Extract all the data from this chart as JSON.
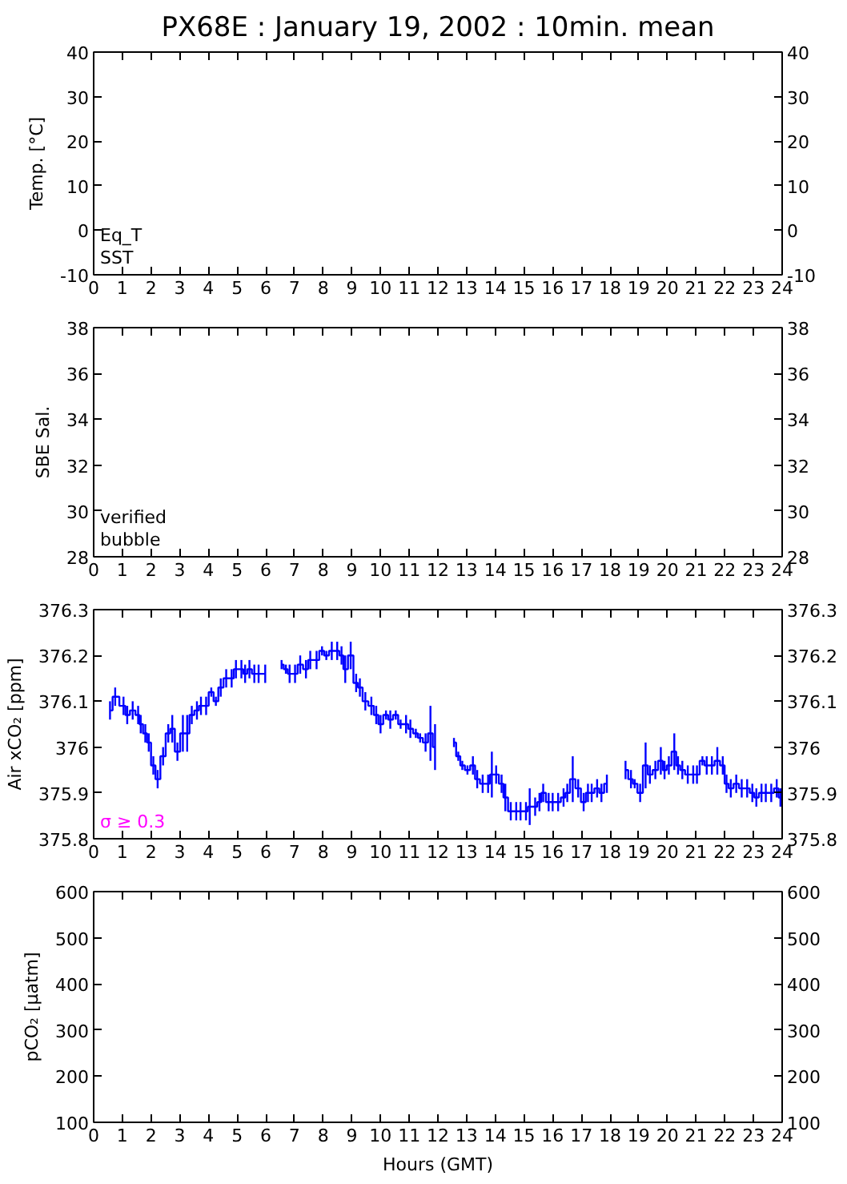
{
  "chart_data": [
    {
      "type": "line",
      "title": "PX68E : January 19, 2002 : 10min. mean",
      "ylabel": "Temp. [°C]",
      "xlim": [
        0,
        24
      ],
      "xticks": [
        0,
        1,
        2,
        3,
        4,
        5,
        6,
        7,
        8,
        9,
        10,
        11,
        12,
        13,
        14,
        15,
        16,
        17,
        18,
        19,
        20,
        21,
        22,
        23,
        24
      ],
      "ylim": [
        -10,
        40
      ],
      "yticks": [
        -10,
        0,
        10,
        20,
        30,
        40
      ],
      "y2lim": [
        -10,
        40
      ],
      "y2ticks": [
        -10,
        0,
        10,
        20,
        30,
        40
      ],
      "annotations": [
        "Eq_T",
        "SST"
      ]
    },
    {
      "type": "line",
      "ylabel": "SBE Sal.",
      "xlim": [
        0,
        24
      ],
      "xticks": [
        0,
        1,
        2,
        3,
        4,
        5,
        6,
        7,
        8,
        9,
        10,
        11,
        12,
        13,
        14,
        15,
        16,
        17,
        18,
        19,
        20,
        21,
        22,
        23,
        24
      ],
      "ylim": [
        28,
        38
      ],
      "yticks": [
        28,
        30,
        32,
        34,
        36,
        38
      ],
      "y2lim": [
        28,
        38
      ],
      "y2ticks": [
        28,
        30,
        32,
        34,
        36,
        38
      ],
      "annotations": [
        "verified",
        "bubble"
      ]
    },
    {
      "type": "step",
      "ylabel": "Air xCO₂ [ppm]",
      "xlim": [
        0,
        24
      ],
      "xticks": [
        0,
        1,
        2,
        3,
        4,
        5,
        6,
        7,
        8,
        9,
        10,
        11,
        12,
        13,
        14,
        15,
        16,
        17,
        18,
        19,
        20,
        21,
        22,
        23,
        24
      ],
      "ylim": [
        375.8,
        376.3
      ],
      "yticks": [
        375.8,
        375.9,
        376,
        376.1,
        376.2,
        376.3
      ],
      "y2lim": [
        375.8,
        376.3
      ],
      "y2ticks": [
        375.8,
        375.9,
        376,
        376.1,
        376.2,
        376.3
      ],
      "series": [
        {
          "color": "#0000ff",
          "x": [
            0.57,
            0.75,
            1.04,
            1.17,
            1.36,
            1.55,
            1.64,
            1.8,
            1.92,
            2.08,
            2.23,
            2.42,
            2.6,
            2.74,
            2.92,
            3.11,
            3.26,
            3.42,
            3.6,
            3.74,
            3.92,
            4.1,
            4.26,
            4.43,
            4.62,
            4.81,
            4.96,
            5.15,
            5.28,
            5.43,
            5.6,
            5.75,
            5.98,
            6.25,
            6.55,
            6.7,
            6.83,
            7.02,
            7.2,
            7.4,
            7.55,
            7.77,
            7.96,
            8.11,
            8.3,
            8.49,
            8.64,
            8.77,
            8.96,
            9.15,
            9.28,
            9.47,
            9.68,
            9.85,
            10.0,
            10.19,
            10.34,
            10.53,
            10.7,
            10.89,
            11.04,
            11.23,
            11.38,
            11.57,
            11.74,
            11.9,
            12.2,
            12.56,
            12.71,
            12.85,
            13.03,
            13.22,
            13.37,
            13.56,
            13.75,
            13.88,
            14.03,
            14.22,
            14.35,
            14.54,
            14.73,
            14.88,
            15.07,
            15.2,
            15.39,
            15.54,
            15.67,
            15.86,
            16.0,
            16.19,
            16.38,
            16.51,
            16.7,
            16.89,
            17.08,
            17.23,
            17.36,
            17.55,
            17.7,
            17.89,
            18.2,
            18.54,
            18.73,
            18.86,
            19.05,
            19.24,
            19.39,
            19.58,
            19.77,
            19.9,
            20.05,
            20.24,
            20.37,
            20.52,
            20.71,
            20.9,
            21.03,
            21.22,
            21.37,
            21.55,
            21.74,
            21.93,
            22.06,
            22.21,
            22.4,
            22.59,
            22.78,
            22.96,
            23.1,
            23.28,
            23.43,
            23.62,
            23.81,
            23.94
          ],
          "values": [
            376.08,
            376.11,
            376.09,
            376.07,
            376.08,
            376.07,
            376.05,
            376.03,
            376.01,
            375.96,
            375.93,
            375.98,
            376.03,
            376.04,
            375.99,
            376.03,
            376.03,
            376.07,
            376.08,
            376.09,
            376.09,
            376.12,
            376.1,
            376.13,
            376.15,
            376.15,
            376.17,
            376.17,
            376.16,
            376.17,
            376.16,
            376.16,
            376.16,
            null,
            376.18,
            376.17,
            376.16,
            376.16,
            376.18,
            376.17,
            376.19,
            376.19,
            376.21,
            376.2,
            376.21,
            376.21,
            376.2,
            376.17,
            376.2,
            376.14,
            376.13,
            376.1,
            376.09,
            376.07,
            376.05,
            376.07,
            376.06,
            376.07,
            376.05,
            376.05,
            376.04,
            376.03,
            376.02,
            376.01,
            376.03,
            376.0,
            null,
            376.01,
            375.98,
            375.96,
            375.95,
            375.96,
            375.93,
            375.92,
            375.92,
            375.94,
            375.94,
            375.92,
            375.89,
            375.86,
            375.86,
            375.86,
            375.86,
            375.87,
            375.87,
            375.88,
            375.9,
            375.88,
            375.88,
            375.88,
            375.89,
            375.9,
            375.93,
            375.91,
            375.88,
            375.9,
            375.9,
            375.91,
            375.9,
            375.92,
            null,
            375.95,
            375.93,
            375.92,
            375.9,
            375.96,
            375.94,
            375.95,
            375.97,
            375.95,
            375.96,
            375.99,
            375.96,
            375.95,
            375.94,
            375.94,
            375.94,
            375.97,
            375.96,
            375.96,
            375.97,
            375.96,
            375.92,
            375.91,
            375.92,
            375.91,
            375.91,
            375.9,
            375.89,
            375.9,
            375.9,
            375.9,
            375.91,
            375.89
          ],
          "errors": [
            0.02,
            0.02,
            0.02,
            0.02,
            0.02,
            0.02,
            0.02,
            0.02,
            0.02,
            0.02,
            0.02,
            0.02,
            0.02,
            0.03,
            0.02,
            0.04,
            0.04,
            0.02,
            0.02,
            0.02,
            0.02,
            0.01,
            0.01,
            0.02,
            0.02,
            0.02,
            0.02,
            0.02,
            0.02,
            0.02,
            0.02,
            0.02,
            0.02,
            null,
            0.01,
            0.01,
            0.02,
            0.02,
            0.02,
            0.02,
            0.02,
            0.02,
            0.01,
            0.01,
            0.02,
            0.02,
            0.02,
            0.03,
            0.03,
            0.02,
            0.02,
            0.02,
            0.02,
            0.02,
            0.02,
            0.01,
            0.02,
            0.01,
            0.01,
            0.02,
            0.02,
            0.01,
            0.01,
            0.02,
            0.06,
            0.05,
            null,
            0.01,
            0.01,
            0.01,
            0.01,
            0.02,
            0.02,
            0.02,
            0.02,
            0.05,
            0.02,
            0.02,
            0.03,
            0.02,
            0.02,
            0.02,
            0.02,
            0.04,
            0.02,
            0.02,
            0.02,
            0.02,
            0.02,
            0.02,
            0.02,
            0.02,
            0.05,
            0.02,
            0.02,
            0.02,
            0.02,
            0.02,
            0.02,
            0.02,
            null,
            0.02,
            0.02,
            0.01,
            0.02,
            0.05,
            0.02,
            0.02,
            0.03,
            0.02,
            0.02,
            0.04,
            0.02,
            0.02,
            0.02,
            0.02,
            0.02,
            0.01,
            0.02,
            0.02,
            0.03,
            0.02,
            0.02,
            0.02,
            0.02,
            0.02,
            0.02,
            0.02,
            0.02,
            0.02,
            0.02,
            0.02,
            0.02,
            0.02
          ]
        },
        {
          "name": "σ ≥ 0.3",
          "color": "#ff00ff"
        }
      ]
    },
    {
      "type": "line",
      "ylabel": "pCO₂ [μatm]",
      "xlabel": "Hours (GMT)",
      "xlim": [
        0,
        24
      ],
      "xticks": [
        0,
        1,
        2,
        3,
        4,
        5,
        6,
        7,
        8,
        9,
        10,
        11,
        12,
        13,
        14,
        15,
        16,
        17,
        18,
        19,
        20,
        21,
        22,
        23,
        24
      ],
      "ylim": [
        100,
        600
      ],
      "yticks": [
        100,
        200,
        300,
        400,
        500,
        600
      ],
      "y2lim": [
        100,
        600
      ],
      "y2ticks": [
        100,
        200,
        300,
        400,
        500,
        600
      ]
    }
  ]
}
